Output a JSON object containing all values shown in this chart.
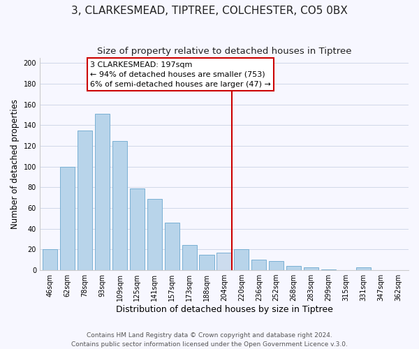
{
  "title": "3, CLARKESMEAD, TIPTREE, COLCHESTER, CO5 0BX",
  "subtitle": "Size of property relative to detached houses in Tiptree",
  "xlabel": "Distribution of detached houses by size in Tiptree",
  "ylabel": "Number of detached properties",
  "bar_labels": [
    "46sqm",
    "62sqm",
    "78sqm",
    "93sqm",
    "109sqm",
    "125sqm",
    "141sqm",
    "157sqm",
    "173sqm",
    "188sqm",
    "204sqm",
    "220sqm",
    "236sqm",
    "252sqm",
    "268sqm",
    "283sqm",
    "299sqm",
    "315sqm",
    "331sqm",
    "347sqm",
    "362sqm"
  ],
  "bar_values": [
    20,
    100,
    135,
    151,
    125,
    79,
    69,
    46,
    24,
    15,
    17,
    20,
    10,
    9,
    4,
    3,
    1,
    0,
    3,
    0,
    0
  ],
  "bar_color": "#b8d4ea",
  "bar_edge_color": "#7ab0d4",
  "highlight_bar_index": 10,
  "highlight_bar_color": "#ccdcee",
  "vline_color": "#cc0000",
  "annotation_title": "3 CLARKESMEAD: 197sqm",
  "annotation_line1": "← 94% of detached houses are smaller (753)",
  "annotation_line2": "6% of semi-detached houses are larger (47) →",
  "annotation_box_edge_color": "#cc0000",
  "ylim": [
    0,
    205
  ],
  "yticks": [
    0,
    20,
    40,
    60,
    80,
    100,
    120,
    140,
    160,
    180,
    200
  ],
  "footer1": "Contains HM Land Registry data © Crown copyright and database right 2024.",
  "footer2": "Contains public sector information licensed under the Open Government Licence v.3.0.",
  "title_fontsize": 11,
  "subtitle_fontsize": 9.5,
  "xlabel_fontsize": 9,
  "ylabel_fontsize": 8.5,
  "tick_fontsize": 7,
  "footer_fontsize": 6.5,
  "annotation_fontsize": 8,
  "background_color": "#f7f7ff",
  "grid_color": "#d0d8e8"
}
